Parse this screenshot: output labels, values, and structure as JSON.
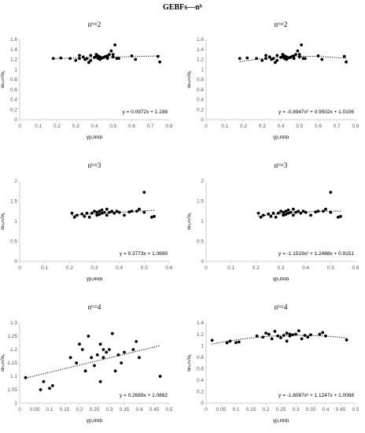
{
  "figure": {
    "title": "GEBFs—nᵇ"
  },
  "chart_data": [
    {
      "type": "scatter",
      "title": "nᵇ=2",
      "xlabel": "γp,mṃ",
      "ylabel": "αₙₒₘ/αᵧ",
      "xlim": [
        0,
        0.8
      ],
      "ylim": [
        0,
        1.6
      ],
      "xticks": [
        "0",
        "0.1",
        "0.2",
        "0.3",
        "0.4",
        "0.5",
        "0.6",
        "0.7",
        "0.8"
      ],
      "yticks": [
        "0",
        "0.2",
        "0.4",
        "0.6",
        "0.8",
        "1",
        "1.2",
        "1.4",
        "1.6"
      ],
      "trend": {
        "kind": "linear",
        "coef": [
          1.198,
          0.0972
        ],
        "label": "y = 0.0972x + 1.198"
      },
      "x": [
        0.18,
        0.22,
        0.27,
        0.3,
        0.32,
        0.32,
        0.34,
        0.35,
        0.36,
        0.37,
        0.38,
        0.38,
        0.4,
        0.41,
        0.41,
        0.42,
        0.42,
        0.43,
        0.43,
        0.44,
        0.45,
        0.46,
        0.47,
        0.47,
        0.48,
        0.49,
        0.5,
        0.5,
        0.51,
        0.52,
        0.53,
        0.6,
        0.62,
        0.74,
        0.75
      ],
      "y": [
        1.22,
        1.23,
        1.22,
        1.18,
        1.22,
        1.28,
        1.25,
        1.2,
        1.22,
        1.14,
        1.18,
        1.28,
        1.24,
        1.25,
        1.3,
        1.22,
        1.27,
        1.25,
        1.2,
        1.23,
        1.24,
        1.26,
        1.27,
        1.22,
        1.3,
        1.37,
        1.3,
        1.25,
        1.49,
        1.22,
        1.22,
        1.27,
        1.2,
        1.26,
        1.15
      ],
      "grid": false
    },
    {
      "type": "scatter",
      "title": "nᵇ=2",
      "xlabel": "γp,mṃ",
      "ylabel": "αₙₒₘ/αᵧ",
      "xlim": [
        0,
        0.8
      ],
      "ylim": [
        0,
        1.6
      ],
      "xticks": [
        "0",
        "0.1",
        "0.2",
        "0.3",
        "0.4",
        "0.5",
        "0.6",
        "0.7",
        "0.8"
      ],
      "yticks": [
        "0",
        "0.2",
        "0.4",
        "0.6",
        "0.8",
        "1",
        "1.2",
        "1.4",
        "1.6"
      ],
      "trend": {
        "kind": "quadratic",
        "coef": [
          1.0106,
          0.9502,
          -0.8947
        ],
        "label": "y = -0.8947x² + 0.9502x + 1.0106"
      },
      "x": [
        0.18,
        0.22,
        0.27,
        0.3,
        0.32,
        0.32,
        0.34,
        0.35,
        0.36,
        0.37,
        0.38,
        0.38,
        0.4,
        0.41,
        0.41,
        0.42,
        0.42,
        0.43,
        0.43,
        0.44,
        0.45,
        0.46,
        0.47,
        0.47,
        0.48,
        0.49,
        0.5,
        0.5,
        0.51,
        0.52,
        0.53,
        0.6,
        0.62,
        0.74,
        0.75
      ],
      "y": [
        1.22,
        1.23,
        1.22,
        1.18,
        1.22,
        1.28,
        1.25,
        1.2,
        1.22,
        1.14,
        1.18,
        1.28,
        1.24,
        1.25,
        1.3,
        1.22,
        1.27,
        1.25,
        1.2,
        1.23,
        1.24,
        1.26,
        1.27,
        1.22,
        1.3,
        1.37,
        1.3,
        1.25,
        1.49,
        1.22,
        1.22,
        1.27,
        1.2,
        1.26,
        1.15
      ],
      "grid": false
    },
    {
      "type": "scatter",
      "title": "nᵇ=3",
      "xlabel": "γp,mṃ",
      "ylabel": "αₙₒₘ/αᵧ",
      "xlim": [
        0,
        0.6
      ],
      "ylim": [
        0,
        2
      ],
      "xticks": [
        "0",
        "0.1",
        "0.2",
        "0.3",
        "0.4",
        "0.5",
        "0.6"
      ],
      "yticks": [
        "0",
        "0.5",
        "1",
        "1.5",
        "2"
      ],
      "trend": {
        "kind": "linear",
        "coef": [
          1.0699,
          0.3773
        ],
        "label": "y = 0.3773x + 1.0699"
      },
      "x": [
        0.21,
        0.22,
        0.23,
        0.25,
        0.26,
        0.27,
        0.28,
        0.29,
        0.3,
        0.31,
        0.31,
        0.32,
        0.32,
        0.33,
        0.33,
        0.34,
        0.35,
        0.35,
        0.36,
        0.37,
        0.38,
        0.39,
        0.4,
        0.42,
        0.44,
        0.45,
        0.47,
        0.48,
        0.5,
        0.5,
        0.53,
        0.54
      ],
      "y": [
        1.2,
        1.1,
        1.15,
        1.18,
        1.12,
        1.2,
        1.1,
        1.2,
        1.25,
        1.15,
        1.22,
        1.25,
        1.17,
        1.28,
        1.2,
        1.22,
        1.3,
        1.15,
        1.22,
        1.25,
        1.2,
        1.25,
        1.22,
        1.15,
        1.23,
        1.25,
        1.25,
        1.3,
        1.72,
        1.22,
        1.1,
        1.12
      ],
      "grid": false
    },
    {
      "type": "scatter",
      "title": "nᵇ=3",
      "xlabel": "γp,mṃ",
      "ylabel": "αₙₒₘ/αᵧ",
      "xlim": [
        0,
        0.6
      ],
      "ylim": [
        0,
        2
      ],
      "xticks": [
        "0",
        "0.1",
        "0.2",
        "0.3",
        "0.4",
        "0.5",
        "0.6"
      ],
      "yticks": [
        "0",
        "0.5",
        "1",
        "1.5",
        "2"
      ],
      "trend": {
        "kind": "quadratic",
        "coef": [
          0.9151,
          1.2488,
          -1.1519
        ],
        "label": "y = -1.1519x² + 1.2488x + 0.9151"
      },
      "x": [
        0.21,
        0.22,
        0.23,
        0.25,
        0.26,
        0.27,
        0.28,
        0.29,
        0.3,
        0.31,
        0.31,
        0.32,
        0.32,
        0.33,
        0.33,
        0.34,
        0.35,
        0.35,
        0.36,
        0.37,
        0.38,
        0.39,
        0.4,
        0.42,
        0.44,
        0.45,
        0.47,
        0.48,
        0.5,
        0.5,
        0.53,
        0.54
      ],
      "y": [
        1.2,
        1.1,
        1.15,
        1.18,
        1.12,
        1.2,
        1.1,
        1.2,
        1.25,
        1.15,
        1.22,
        1.25,
        1.17,
        1.28,
        1.2,
        1.22,
        1.3,
        1.15,
        1.22,
        1.25,
        1.2,
        1.25,
        1.22,
        1.15,
        1.23,
        1.25,
        1.25,
        1.3,
        1.72,
        1.22,
        1.1,
        1.12
      ],
      "grid": false
    },
    {
      "type": "scatter",
      "title": "nᵇ=4",
      "xlabel": "γp,mṃ",
      "ylabel": "αₙₒₘ/αᵧ",
      "xlim": [
        0,
        0.5
      ],
      "ylim": [
        1,
        1.3
      ],
      "xticks": [
        "0",
        "0.05",
        "0.1",
        "0.15",
        "0.2",
        "0.25",
        "0.3",
        "0.35",
        "0.4",
        "0.45",
        "0.5"
      ],
      "yticks": [
        "1",
        "1.05",
        "1.1",
        "1.15",
        "1.2",
        "1.25",
        "1.3"
      ],
      "trend": {
        "kind": "linear",
        "coef": [
          1.0882,
          0.2689
        ],
        "label": "y = 0.2689x + 1.0882"
      },
      "x": [
        0.02,
        0.07,
        0.08,
        0.1,
        0.11,
        0.17,
        0.19,
        0.2,
        0.21,
        0.22,
        0.23,
        0.24,
        0.25,
        0.26,
        0.27,
        0.27,
        0.28,
        0.28,
        0.29,
        0.3,
        0.31,
        0.32,
        0.33,
        0.34,
        0.35,
        0.38,
        0.39,
        0.4,
        0.47
      ],
      "y": [
        1.095,
        1.05,
        1.08,
        1.055,
        1.065,
        1.17,
        1.15,
        1.22,
        1.2,
        1.12,
        1.25,
        1.17,
        1.14,
        1.18,
        1.08,
        1.22,
        1.2,
        1.17,
        1.19,
        1.2,
        1.26,
        1.12,
        1.18,
        1.15,
        1.19,
        1.2,
        1.23,
        1.17,
        1.1
      ],
      "grid": false
    },
    {
      "type": "scatter",
      "title": "nᵇ=4",
      "xlabel": "γp,mṃ",
      "ylabel": "αₙₒₘ/αᵧ",
      "xlim": [
        0,
        0.5
      ],
      "ylim": [
        0,
        1.4
      ],
      "xticks": [
        "0",
        "0.05",
        "0.1",
        "0.15",
        "0.2",
        "0.25",
        "0.3",
        "0.35",
        "0.4",
        "0.45",
        "0.5"
      ],
      "yticks": [
        "0",
        "0.2",
        "0.4",
        "0.6",
        "0.8",
        "1",
        "1.2",
        "1.4"
      ],
      "trend": {
        "kind": "quadratic",
        "coef": [
          1.0068,
          1.1247,
          -1.8087
        ],
        "label": "y = -1.8087x² + 1.1247x + 1.0068"
      },
      "x": [
        0.02,
        0.07,
        0.08,
        0.1,
        0.11,
        0.17,
        0.19,
        0.2,
        0.21,
        0.22,
        0.23,
        0.24,
        0.25,
        0.26,
        0.27,
        0.27,
        0.28,
        0.28,
        0.29,
        0.3,
        0.31,
        0.32,
        0.33,
        0.34,
        0.35,
        0.38,
        0.39,
        0.4,
        0.47
      ],
      "y": [
        1.095,
        1.05,
        1.08,
        1.055,
        1.065,
        1.17,
        1.15,
        1.22,
        1.2,
        1.12,
        1.25,
        1.17,
        1.14,
        1.18,
        1.08,
        1.22,
        1.2,
        1.17,
        1.19,
        1.2,
        1.26,
        1.12,
        1.18,
        1.15,
        1.19,
        1.2,
        1.23,
        1.17,
        1.1
      ],
      "grid": false
    }
  ]
}
